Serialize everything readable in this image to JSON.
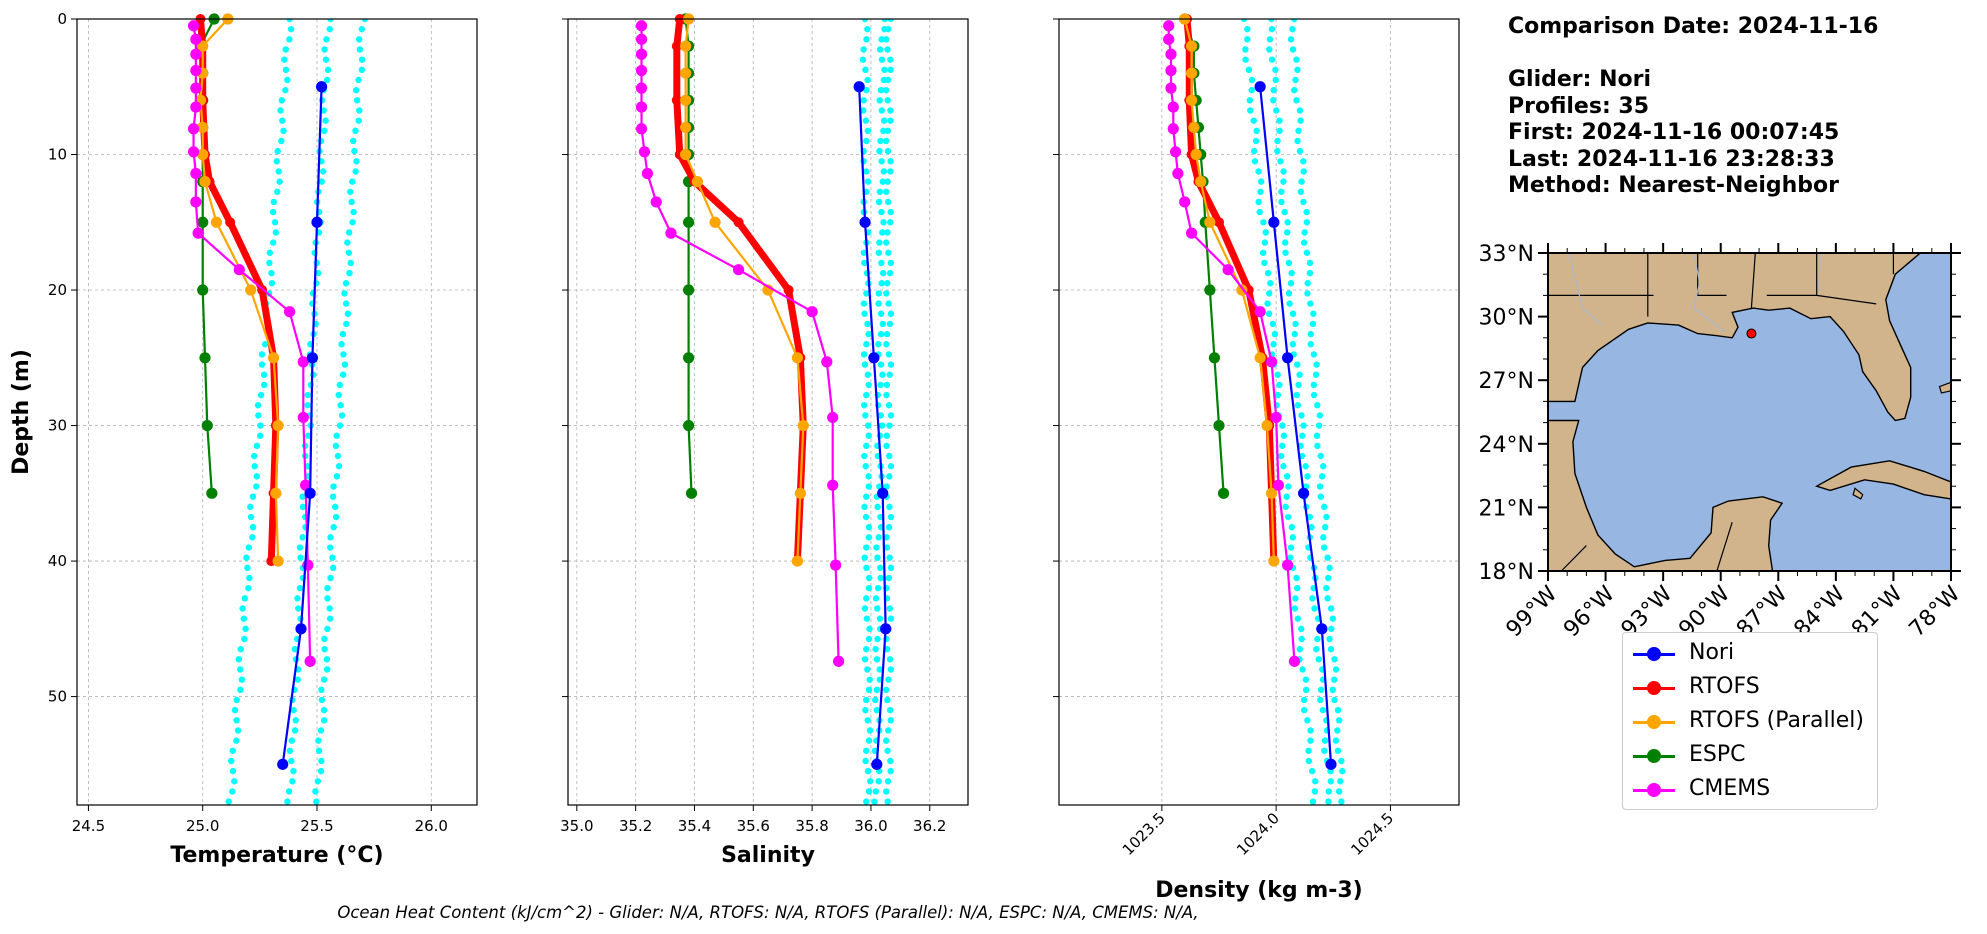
{
  "chart_data": [
    {
      "type": "line",
      "xlabel": "Temperature (°C)",
      "ylabel": "Depth (m)",
      "xlim": [
        24.45,
        26.2
      ],
      "ylim": [
        58,
        0
      ],
      "xticks": [
        "24.5",
        "25.0",
        "25.5",
        "26.0"
      ],
      "yticks": [
        "0",
        "10",
        "20",
        "30",
        "40",
        "50"
      ],
      "grid": true,
      "series": [
        {
          "name": "RTOFS",
          "color": "#ff0000",
          "points": [
            [
              24.99,
              0
            ],
            [
              25.0,
              2
            ],
            [
              25.0,
              6
            ],
            [
              25.01,
              10
            ],
            [
              25.03,
              12
            ],
            [
              25.12,
              15
            ],
            [
              25.26,
              20
            ],
            [
              25.31,
              25
            ],
            [
              25.32,
              30
            ],
            [
              25.31,
              35
            ],
            [
              25.3,
              40
            ]
          ]
        },
        {
          "name": "RTOFS (Parallel)",
          "color": "#ffa500",
          "points": [
            [
              25.11,
              0
            ],
            [
              25.0,
              2
            ],
            [
              25.0,
              4
            ],
            [
              24.99,
              6
            ],
            [
              25.0,
              8
            ],
            [
              25.0,
              10
            ],
            [
              25.01,
              12
            ],
            [
              25.06,
              15
            ],
            [
              25.21,
              20
            ],
            [
              25.31,
              25
            ],
            [
              25.33,
              30
            ],
            [
              25.32,
              35
            ],
            [
              25.33,
              40
            ]
          ]
        },
        {
          "name": "ESPC",
          "color": "#008000",
          "points": [
            [
              25.05,
              0
            ],
            [
              24.99,
              2
            ],
            [
              25.0,
              4
            ],
            [
              25.0,
              6
            ],
            [
              25.0,
              8
            ],
            [
              25.0,
              10
            ],
            [
              25.0,
              12
            ],
            [
              25.0,
              15
            ],
            [
              25.0,
              20
            ],
            [
              25.01,
              25
            ],
            [
              25.02,
              30
            ],
            [
              25.04,
              35
            ]
          ]
        },
        {
          "name": "CMEMS",
          "color": "#ff00ff",
          "points": [
            [
              24.96,
              0.5
            ],
            [
              24.97,
              1.5
            ],
            [
              24.97,
              2.6
            ],
            [
              24.97,
              3.8
            ],
            [
              24.97,
              5.1
            ],
            [
              24.97,
              6.5
            ],
            [
              24.96,
              8.1
            ],
            [
              24.96,
              9.8
            ],
            [
              24.97,
              11.4
            ],
            [
              24.97,
              13.5
            ],
            [
              24.98,
              15.8
            ],
            [
              25.16,
              18.5
            ],
            [
              25.38,
              21.6
            ],
            [
              25.44,
              25.3
            ],
            [
              25.44,
              29.4
            ],
            [
              25.45,
              34.4
            ],
            [
              25.46,
              40.3
            ],
            [
              25.47,
              47.4
            ]
          ]
        },
        {
          "name": "Nori",
          "color": "#0000ff",
          "points": [
            [
              25.52,
              5
            ],
            [
              25.5,
              15
            ],
            [
              25.48,
              25
            ],
            [
              25.47,
              35
            ],
            [
              25.43,
              45
            ],
            [
              25.35,
              55
            ]
          ]
        }
      ]
    },
    {
      "type": "line",
      "xlabel": "Salinity",
      "ylabel": "",
      "xlim": [
        34.97,
        36.33
      ],
      "ylim": [
        58,
        0
      ],
      "xticks": [
        "35.0",
        "35.2",
        "35.4",
        "35.6",
        "35.8",
        "36.0",
        "36.2"
      ],
      "grid": true,
      "series": [
        {
          "name": "RTOFS",
          "color": "#ff0000",
          "points": [
            [
              35.35,
              0
            ],
            [
              35.34,
              2
            ],
            [
              35.34,
              6
            ],
            [
              35.35,
              10
            ],
            [
              35.4,
              12
            ],
            [
              35.55,
              15
            ],
            [
              35.72,
              20
            ],
            [
              35.76,
              25
            ],
            [
              35.77,
              30
            ],
            [
              35.76,
              35
            ],
            [
              35.75,
              40
            ]
          ]
        },
        {
          "name": "RTOFS (Parallel)",
          "color": "#ffa500",
          "points": [
            [
              35.38,
              0
            ],
            [
              35.37,
              2
            ],
            [
              35.37,
              4
            ],
            [
              35.37,
              6
            ],
            [
              35.37,
              8
            ],
            [
              35.37,
              10
            ],
            [
              35.41,
              12
            ],
            [
              35.47,
              15
            ],
            [
              35.65,
              20
            ],
            [
              35.75,
              25
            ],
            [
              35.77,
              30
            ],
            [
              35.76,
              35
            ],
            [
              35.75,
              40
            ]
          ]
        },
        {
          "name": "ESPC",
          "color": "#008000",
          "points": [
            [
              35.37,
              0
            ],
            [
              35.38,
              2
            ],
            [
              35.38,
              4
            ],
            [
              35.38,
              6
            ],
            [
              35.38,
              8
            ],
            [
              35.38,
              10
            ],
            [
              35.38,
              12
            ],
            [
              35.38,
              15
            ],
            [
              35.38,
              20
            ],
            [
              35.38,
              25
            ],
            [
              35.38,
              30
            ],
            [
              35.39,
              35
            ]
          ]
        },
        {
          "name": "CMEMS",
          "color": "#ff00ff",
          "points": [
            [
              35.22,
              0.5
            ],
            [
              35.22,
              1.5
            ],
            [
              35.22,
              2.6
            ],
            [
              35.22,
              3.8
            ],
            [
              35.22,
              5.1
            ],
            [
              35.22,
              6.5
            ],
            [
              35.22,
              8.1
            ],
            [
              35.23,
              9.8
            ],
            [
              35.24,
              11.4
            ],
            [
              35.27,
              13.5
            ],
            [
              35.32,
              15.8
            ],
            [
              35.55,
              18.5
            ],
            [
              35.8,
              21.6
            ],
            [
              35.85,
              25.3
            ],
            [
              35.87,
              29.4
            ],
            [
              35.87,
              34.4
            ],
            [
              35.88,
              40.3
            ],
            [
              35.89,
              47.4
            ]
          ]
        },
        {
          "name": "Nori",
          "color": "#0000ff",
          "points": [
            [
              35.96,
              5
            ],
            [
              35.98,
              15
            ],
            [
              36.01,
              25
            ],
            [
              36.04,
              35
            ],
            [
              36.05,
              45
            ],
            [
              36.02,
              55
            ]
          ]
        }
      ]
    },
    {
      "type": "line",
      "xlabel": "Density (kg m-3)",
      "ylabel": "",
      "xlim": [
        1023.05,
        1024.8
      ],
      "ylim": [
        58,
        0
      ],
      "xticks": [
        "1023.5",
        "1024.0",
        "1024.5"
      ],
      "grid": true,
      "series": [
        {
          "name": "RTOFS",
          "color": "#ff0000",
          "points": [
            [
              1023.61,
              0
            ],
            [
              1023.62,
              2
            ],
            [
              1023.62,
              6
            ],
            [
              1023.63,
              10
            ],
            [
              1023.66,
              12
            ],
            [
              1023.75,
              15
            ],
            [
              1023.88,
              20
            ],
            [
              1023.94,
              25
            ],
            [
              1023.97,
              30
            ],
            [
              1023.98,
              35
            ],
            [
              1023.99,
              40
            ]
          ]
        },
        {
          "name": "RTOFS (Parallel)",
          "color": "#ffa500",
          "points": [
            [
              1023.6,
              0
            ],
            [
              1023.63,
              2
            ],
            [
              1023.63,
              4
            ],
            [
              1023.63,
              6
            ],
            [
              1023.64,
              8
            ],
            [
              1023.65,
              10
            ],
            [
              1023.67,
              12
            ],
            [
              1023.71,
              15
            ],
            [
              1023.85,
              20
            ],
            [
              1023.93,
              25
            ],
            [
              1023.96,
              30
            ],
            [
              1023.98,
              35
            ],
            [
              1023.99,
              40
            ]
          ]
        },
        {
          "name": "ESPC",
          "color": "#008000",
          "points": [
            [
              1023.6,
              0
            ],
            [
              1023.64,
              2
            ],
            [
              1023.64,
              4
            ],
            [
              1023.65,
              6
            ],
            [
              1023.66,
              8
            ],
            [
              1023.67,
              10
            ],
            [
              1023.68,
              12
            ],
            [
              1023.69,
              15
            ],
            [
              1023.71,
              20
            ],
            [
              1023.73,
              25
            ],
            [
              1023.75,
              30
            ],
            [
              1023.77,
              35
            ]
          ]
        },
        {
          "name": "CMEMS",
          "color": "#ff00ff",
          "points": [
            [
              1023.53,
              0.5
            ],
            [
              1023.53,
              1.5
            ],
            [
              1023.54,
              2.6
            ],
            [
              1023.54,
              3.8
            ],
            [
              1023.54,
              5.1
            ],
            [
              1023.55,
              6.5
            ],
            [
              1023.55,
              8.1
            ],
            [
              1023.56,
              9.8
            ],
            [
              1023.57,
              11.4
            ],
            [
              1023.6,
              13.5
            ],
            [
              1023.63,
              15.8
            ],
            [
              1023.79,
              18.5
            ],
            [
              1023.93,
              21.6
            ],
            [
              1023.98,
              25.3
            ],
            [
              1024.0,
              29.4
            ],
            [
              1024.01,
              34.4
            ],
            [
              1024.05,
              40.3
            ],
            [
              1024.08,
              47.4
            ]
          ]
        },
        {
          "name": "Nori",
          "color": "#0000ff",
          "points": [
            [
              1023.93,
              5
            ],
            [
              1023.99,
              15
            ],
            [
              1024.05,
              25
            ],
            [
              1024.12,
              35
            ],
            [
              1024.2,
              45
            ],
            [
              1024.24,
              55
            ]
          ]
        }
      ]
    }
  ],
  "glider_cloud": [
    {
      "x": [
        25.38,
        25.55,
        25.7
      ],
      "bottom": [
        25.12,
        25.38,
        25.5
      ]
    },
    {
      "x": [
        35.98,
        36.04,
        36.06
      ],
      "bottom": [
        35.99,
        36.02,
        36.06
      ]
    },
    {
      "x": [
        1023.86,
        1023.97,
        1024.07
      ],
      "bottom": [
        1024.17,
        1024.24,
        1024.29
      ]
    }
  ],
  "info": {
    "comparison_date": "Comparison Date: 2024-11-16",
    "glider": "Glider: Nori",
    "profiles": "Profiles: 35",
    "first": "First: 2024-11-16 00:07:45",
    "last": "Last: 2024-11-16 23:28:33",
    "method": "Method: Nearest-Neighbor"
  },
  "map": {
    "lat_labels": [
      "33°N",
      "30°N",
      "27°N",
      "24°N",
      "21°N",
      "18°N"
    ],
    "lon_labels": [
      "99°W",
      "96°W",
      "93°W",
      "90°W",
      "87°W",
      "84°W",
      "81°W",
      "78°W"
    ],
    "land_color": "#d2b48c",
    "ocean_color": "#97b6e1",
    "glider_position": {
      "lon": -88.4,
      "lat": 29.2
    },
    "glider_marker_color": "#ff0000"
  },
  "legend": [
    {
      "label": "Nori",
      "color": "#0000ff"
    },
    {
      "label": "RTOFS",
      "color": "#ff0000"
    },
    {
      "label": "RTOFS (Parallel)",
      "color": "#ffa500"
    },
    {
      "label": "ESPC",
      "color": "#008000"
    },
    {
      "label": "CMEMS",
      "color": "#ff00ff"
    }
  ],
  "footer": "Ocean Heat Content (kJ/cm^2) - Glider: N/A,  RTOFS: N/A,  RTOFS (Parallel): N/A,  ESPC: N/A,  CMEMS: N/A,"
}
